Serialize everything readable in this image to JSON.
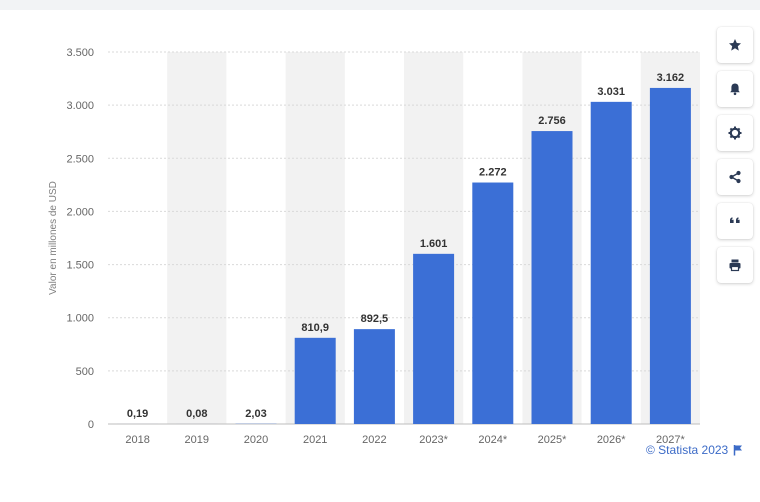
{
  "toolbar": {
    "icons": [
      "star-icon",
      "bell-icon",
      "gear-icon",
      "share-icon",
      "quote-icon",
      "print-icon"
    ]
  },
  "footer": {
    "credit": "© Statista 2023",
    "flag_icon": "flag-icon"
  },
  "colors": {
    "bar": "#3b6fd6",
    "band": "#f2f2f2",
    "grid": "#d9d9d9",
    "link": "#3c6bc7"
  },
  "chart_data": {
    "type": "bar",
    "ylabel": "Valor en millones de USD",
    "ylim": [
      0,
      3500
    ],
    "yticks": [
      0,
      500,
      1000,
      1500,
      2000,
      2500,
      3000,
      3500
    ],
    "ytick_labels": [
      "0",
      "500",
      "1.000",
      "1.500",
      "2.000",
      "2.500",
      "3.000",
      "3.500"
    ],
    "grid": true,
    "categories": [
      "2018",
      "2019",
      "2020",
      "2021",
      "2022",
      "2023*",
      "2024*",
      "2025*",
      "2026*",
      "2027*"
    ],
    "values": [
      0.19,
      0.08,
      2.03,
      810.9,
      892.5,
      1601,
      2272,
      2756,
      3031,
      3162
    ],
    "data_labels": [
      "0,19",
      "0,08",
      "2,03",
      "810,9",
      "892,5",
      "1.601",
      "2.272",
      "2.756",
      "3.031",
      "3.162"
    ]
  }
}
